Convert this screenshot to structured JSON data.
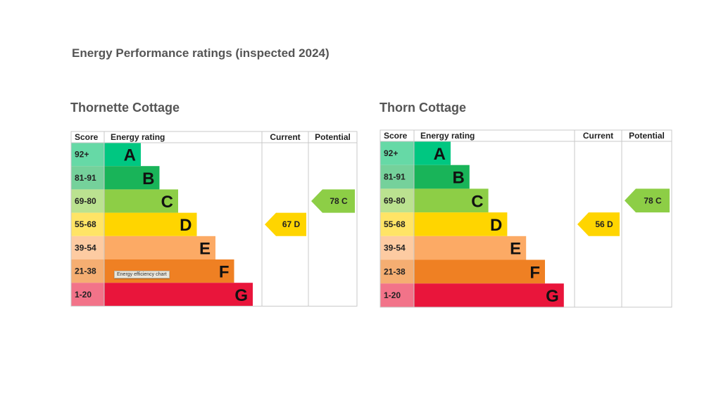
{
  "page_title": "Energy Performance ratings (inspected 2024)",
  "chart_data": [
    {
      "type": "table",
      "title": "Thornette Cottage",
      "headers": {
        "score": "Score",
        "rating": "Energy rating",
        "current": "Current",
        "potential": "Potential"
      },
      "bands": [
        {
          "letter": "A",
          "range": "92+",
          "color": "#00c781",
          "score_color": "#66d9a6"
        },
        {
          "letter": "B",
          "range": "81-91",
          "color": "#19b459",
          "score_color": "#75d19b"
        },
        {
          "letter": "C",
          "range": "69-80",
          "color": "#8dce46",
          "score_color": "#bbe290"
        },
        {
          "letter": "D",
          "range": "55-68",
          "color": "#ffd500",
          "score_color": "#ffe466"
        },
        {
          "letter": "E",
          "range": "39-54",
          "color": "#fcaa65",
          "score_color": "#fdcba2"
        },
        {
          "letter": "F",
          "range": "21-38",
          "color": "#ef8023",
          "score_color": "#f5ae72"
        },
        {
          "letter": "G",
          "range": "1-20",
          "color": "#e9153b",
          "score_color": "#f27389"
        }
      ],
      "current": {
        "value": 67,
        "band": "D",
        "label": "67  D",
        "color": "#ffd500"
      },
      "potential": {
        "value": 78,
        "band": "C",
        "label": "78  C",
        "color": "#8dce46"
      },
      "tooltip": "Energy efficiency chart"
    },
    {
      "type": "table",
      "title": "Thorn Cottage",
      "headers": {
        "score": "Score",
        "rating": "Energy rating",
        "current": "Current",
        "potential": "Potential"
      },
      "bands": [
        {
          "letter": "A",
          "range": "92+",
          "color": "#00c781",
          "score_color": "#66d9a6"
        },
        {
          "letter": "B",
          "range": "81-91",
          "color": "#19b459",
          "score_color": "#75d19b"
        },
        {
          "letter": "C",
          "range": "69-80",
          "color": "#8dce46",
          "score_color": "#bbe290"
        },
        {
          "letter": "D",
          "range": "55-68",
          "color": "#ffd500",
          "score_color": "#ffe466"
        },
        {
          "letter": "E",
          "range": "39-54",
          "color": "#fcaa65",
          "score_color": "#fdcba2"
        },
        {
          "letter": "F",
          "range": "21-38",
          "color": "#ef8023",
          "score_color": "#f5ae72"
        },
        {
          "letter": "G",
          "range": "1-20",
          "color": "#e9153b",
          "score_color": "#f27389"
        }
      ],
      "current": {
        "value": 56,
        "band": "D",
        "label": "56  D",
        "color": "#ffd500"
      },
      "potential": {
        "value": 78,
        "band": "C",
        "label": "78  C",
        "color": "#8dce46"
      }
    }
  ]
}
